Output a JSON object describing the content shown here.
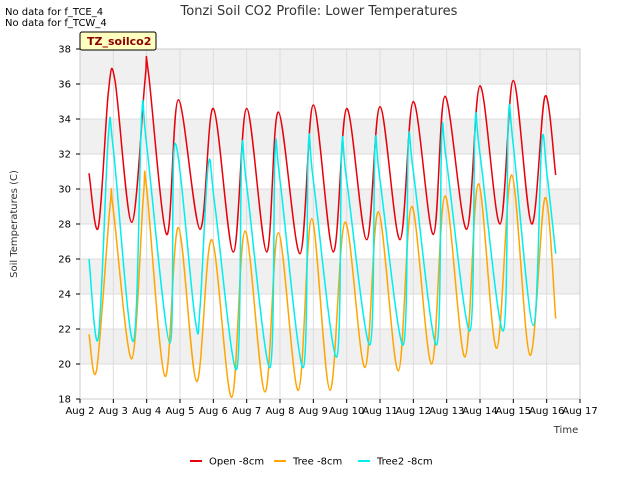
{
  "notes": [
    "No data for f_TCE_4",
    "No data for f_TCW_4"
  ],
  "site_badge": "TZ_soilco2",
  "chart_data": {
    "type": "line",
    "title": "Tonzi Soil CO2 Profile: Lower Temperatures",
    "xlabel": "Time",
    "ylabel": "Soil Temperatures (C)",
    "xlim": [
      2,
      17
    ],
    "ylim": [
      18,
      38
    ],
    "xticks": [
      2,
      3,
      4,
      5,
      6,
      7,
      8,
      9,
      10,
      11,
      12,
      13,
      14,
      15,
      16,
      17
    ],
    "xtick_labels": [
      "Aug 2",
      "Aug 3",
      "Aug 4",
      "Aug 5",
      "Aug 6",
      "Aug 7",
      "Aug 8",
      "Aug 9",
      "Aug 10",
      "Aug 11",
      "Aug 12",
      "Aug 13",
      "Aug 14",
      "Aug 15",
      "Aug 16",
      "Aug 17"
    ],
    "yticks": [
      18,
      20,
      22,
      24,
      26,
      28,
      30,
      32,
      34,
      36,
      38
    ],
    "grid": true,
    "legend_position": "bottom",
    "series": [
      {
        "name": "Open -8cm",
        "color": "#e8000b",
        "points": [
          [
            2.27,
            30.9
          ],
          [
            2.55,
            27.8
          ],
          [
            2.85,
            35.5
          ],
          [
            3.05,
            36.2
          ],
          [
            3.55,
            28.1
          ],
          [
            3.95,
            36.2
          ],
          [
            4.05,
            36.7
          ],
          [
            4.6,
            27.4
          ],
          [
            4.95,
            35.1
          ],
          [
            5.6,
            27.7
          ],
          [
            6.0,
            34.6
          ],
          [
            6.6,
            26.4
          ],
          [
            7.0,
            34.6
          ],
          [
            7.6,
            26.4
          ],
          [
            7.95,
            34.4
          ],
          [
            8.6,
            26.3
          ],
          [
            9.0,
            34.8
          ],
          [
            9.6,
            26.4
          ],
          [
            10.0,
            34.6
          ],
          [
            10.6,
            27.1
          ],
          [
            11.0,
            34.7
          ],
          [
            11.6,
            27.1
          ],
          [
            12.0,
            35.0
          ],
          [
            12.6,
            27.4
          ],
          [
            12.95,
            35.3
          ],
          [
            13.6,
            27.7
          ],
          [
            14.0,
            35.9
          ],
          [
            14.6,
            28.0
          ],
          [
            15.0,
            36.2
          ],
          [
            15.55,
            28.0
          ],
          [
            15.95,
            35.3
          ],
          [
            16.27,
            30.8
          ]
        ]
      },
      {
        "name": "Tree -8cm",
        "color": "#ffa500",
        "points": [
          [
            2.27,
            21.7
          ],
          [
            2.5,
            19.7
          ],
          [
            2.9,
            29.0
          ],
          [
            3.0,
            28.8
          ],
          [
            3.55,
            20.3
          ],
          [
            3.9,
            29.5
          ],
          [
            4.0,
            30.0
          ],
          [
            4.55,
            19.3
          ],
          [
            4.95,
            27.8
          ],
          [
            5.5,
            19.0
          ],
          [
            5.95,
            27.1
          ],
          [
            6.55,
            18.1
          ],
          [
            6.95,
            27.6
          ],
          [
            7.55,
            18.4
          ],
          [
            7.95,
            27.5
          ],
          [
            8.55,
            18.5
          ],
          [
            8.95,
            28.3
          ],
          [
            9.5,
            18.5
          ],
          [
            9.95,
            28.1
          ],
          [
            10.55,
            19.8
          ],
          [
            10.95,
            28.7
          ],
          [
            11.55,
            19.6
          ],
          [
            11.95,
            29.0
          ],
          [
            12.55,
            20.0
          ],
          [
            12.95,
            29.6
          ],
          [
            13.55,
            20.4
          ],
          [
            13.95,
            30.3
          ],
          [
            14.5,
            20.9
          ],
          [
            14.95,
            30.8
          ],
          [
            15.5,
            20.5
          ],
          [
            15.95,
            29.5
          ],
          [
            16.27,
            22.6
          ]
        ]
      },
      {
        "name": "Tree2 -8cm",
        "color": "#00eeee",
        "points": [
          [
            2.27,
            26.0
          ],
          [
            2.55,
            21.5
          ],
          [
            2.85,
            33.0
          ],
          [
            3.0,
            32.3
          ],
          [
            3.6,
            21.3
          ],
          [
            3.85,
            34.2
          ],
          [
            4.0,
            32.5
          ],
          [
            4.7,
            21.2
          ],
          [
            4.85,
            32.6
          ],
          [
            5.45,
            22.6
          ],
          [
            5.6,
            23.2
          ],
          [
            5.85,
            31.4
          ],
          [
            6.05,
            29.0
          ],
          [
            6.7,
            19.7
          ],
          [
            6.85,
            32.0
          ],
          [
            7.0,
            30.2
          ],
          [
            7.7,
            19.8
          ],
          [
            7.85,
            32.0
          ],
          [
            8.0,
            30.5
          ],
          [
            8.7,
            19.8
          ],
          [
            8.85,
            32.4
          ],
          [
            9.0,
            30.5
          ],
          [
            9.7,
            20.4
          ],
          [
            9.85,
            32.3
          ],
          [
            10.0,
            30.5
          ],
          [
            10.7,
            21.1
          ],
          [
            10.85,
            32.4
          ],
          [
            11.0,
            30.5
          ],
          [
            11.7,
            21.1
          ],
          [
            11.85,
            32.5
          ],
          [
            12.0,
            31.0
          ],
          [
            12.7,
            21.1
          ],
          [
            12.85,
            33.0
          ],
          [
            13.0,
            31.5
          ],
          [
            13.7,
            21.9
          ],
          [
            13.85,
            33.6
          ],
          [
            14.0,
            32.0
          ],
          [
            14.7,
            21.9
          ],
          [
            14.85,
            34.0
          ],
          [
            15.0,
            32.5
          ],
          [
            15.6,
            22.2
          ],
          [
            15.85,
            32.6
          ],
          [
            16.0,
            31.0
          ],
          [
            16.27,
            26.3
          ]
        ]
      }
    ]
  }
}
